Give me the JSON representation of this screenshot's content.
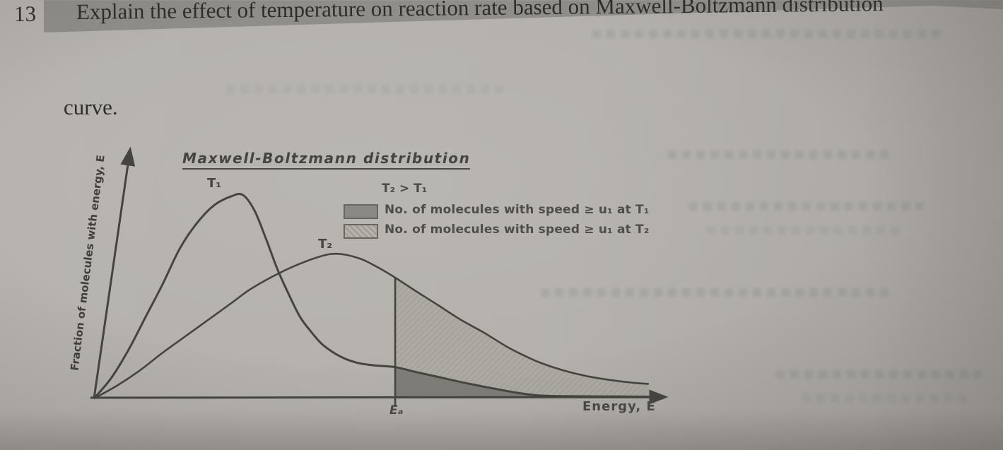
{
  "page": {
    "question_number": "13",
    "question_text": "Explain the effect of temperature on reaction rate based on Maxwell-Boltzmann distribution",
    "question_text_line2": "curve."
  },
  "figure": {
    "title": "Maxwell-Boltzmann distribution",
    "ylabel": "Fraction of molecules with energy, E",
    "xlabel": "Energy, E",
    "ea_label": "Eₐ",
    "t1_label": "T₁",
    "t2_label": "T₂",
    "legend": {
      "relation": "T₂ > T₁",
      "items": [
        {
          "swatch": "dark",
          "label": "No. of molecules with speed ≥ u₁ at T₁"
        },
        {
          "swatch": "light",
          "label": "No. of molecules with speed ≥ u₁ at T₂"
        }
      ]
    },
    "colors": {
      "paper": "#b3b0ab",
      "ink": "#3c3b38",
      "curve": "#454440",
      "dark_area": "#7f7d77",
      "light_area": "#a8a59f"
    }
  },
  "chart_data": {
    "type": "area",
    "title": "Maxwell-Boltzmann distribution",
    "xlabel": "Energy, E",
    "ylabel": "Fraction of molecules with energy, E",
    "x_range": [
      0,
      100
    ],
    "y_range": [
      0,
      100
    ],
    "grid": false,
    "legend_position": "upper right",
    "activation_energy_x": 52.6,
    "annotations": [
      {
        "text": "T₂ > T₁",
        "role": "legend-relation"
      },
      {
        "text": "T₁",
        "x": 22,
        "y": 86,
        "role": "curve-label"
      },
      {
        "text": "T₂",
        "x": 40,
        "y": 62,
        "role": "curve-label"
      },
      {
        "text": "Eₐ",
        "x": 52.6,
        "y": -6,
        "role": "axis-marker"
      }
    ],
    "series": [
      {
        "name": "T₁",
        "points": [
          [
            0,
            0
          ],
          [
            3,
            8
          ],
          [
            6,
            19
          ],
          [
            9,
            32
          ],
          [
            12,
            45
          ],
          [
            15,
            59
          ],
          [
            18,
            69
          ],
          [
            21,
            76
          ],
          [
            24,
            79.5
          ],
          [
            26,
            80
          ],
          [
            28,
            74
          ],
          [
            30,
            63
          ],
          [
            32,
            51
          ],
          [
            34,
            41
          ],
          [
            36,
            32
          ],
          [
            38,
            26
          ],
          [
            40,
            21
          ],
          [
            43,
            16.5
          ],
          [
            46,
            14
          ],
          [
            49,
            13
          ],
          [
            52.6,
            12.3
          ],
          [
            56,
            10.5
          ],
          [
            60,
            8.5
          ],
          [
            65,
            6
          ],
          [
            70,
            3.8
          ],
          [
            74,
            2.2
          ],
          [
            77.6,
            1.2
          ],
          [
            82,
            0.9
          ],
          [
            88,
            0.8
          ],
          [
            96.9,
            0.7
          ]
        ]
      },
      {
        "name": "T₂",
        "points": [
          [
            0,
            0
          ],
          [
            4,
            5
          ],
          [
            8,
            11
          ],
          [
            12,
            18
          ],
          [
            16,
            24.5
          ],
          [
            20,
            31
          ],
          [
            24,
            37.5
          ],
          [
            27,
            42.5
          ],
          [
            30,
            46.5
          ],
          [
            33,
            50
          ],
          [
            36,
            53
          ],
          [
            39,
            55.5
          ],
          [
            41.5,
            56.8
          ],
          [
            44,
            56.5
          ],
          [
            47,
            54.5
          ],
          [
            50,
            51
          ],
          [
            52.6,
            47.5
          ],
          [
            56,
            42.5
          ],
          [
            60,
            36.8
          ],
          [
            64,
            31
          ],
          [
            68,
            26
          ],
          [
            72,
            20.5
          ],
          [
            75,
            17
          ],
          [
            78,
            14
          ],
          [
            82,
            11
          ],
          [
            86,
            8.8
          ],
          [
            90,
            7.3
          ],
          [
            94,
            6.2
          ],
          [
            96.9,
            5.7
          ]
        ]
      }
    ],
    "shaded_regions": [
      {
        "style": "dark",
        "between": [
          "T₁",
          "x-axis"
        ],
        "from_x": 52.6,
        "to_x": 96.9,
        "meaning": "No. of molecules with speed ≥ u₁ at T₁"
      },
      {
        "style": "light",
        "between": [
          "T₂",
          "T₁"
        ],
        "from_x": 52.6,
        "to_x": 96.9,
        "meaning": "No. of molecules with speed ≥ u₁ at T₂"
      }
    ]
  }
}
